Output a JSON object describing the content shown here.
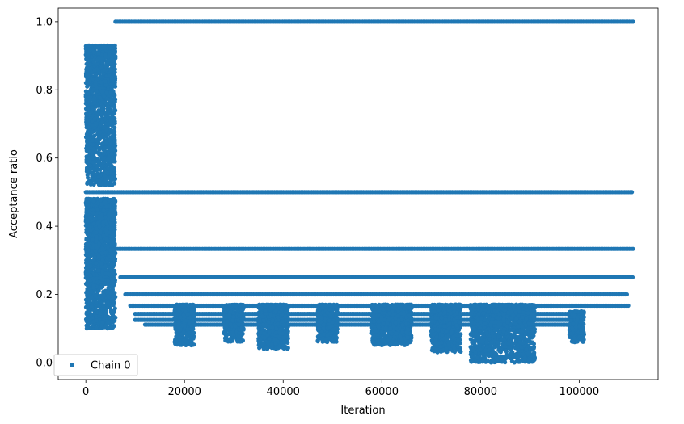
{
  "chart_data": {
    "type": "scatter",
    "xlabel": "Iteration",
    "ylabel": "Acceptance ratio",
    "xlim": [
      -5600,
      116000
    ],
    "ylim": [
      -0.05,
      1.04
    ],
    "xticks": [
      0,
      20000,
      40000,
      60000,
      80000,
      100000
    ],
    "xtick_labels": [
      "0",
      "20000",
      "40000",
      "60000",
      "80000",
      "100000"
    ],
    "yticks": [
      0.0,
      0.2,
      0.4,
      0.6,
      0.8,
      1.0
    ],
    "ytick_labels": [
      "0.0",
      "0.2",
      "0.4",
      "0.6",
      "0.8",
      "1.0"
    ],
    "grid": false,
    "legend_position": "lower-left",
    "marker_color": "#1f77b4",
    "series": [
      {
        "name": "Chain 0",
        "level_bands": [
          {
            "y": 1.0,
            "x_range": [
              6000,
              111000
            ]
          },
          {
            "y": 0.5,
            "x_range": [
              0,
              111000
            ]
          },
          {
            "y": 0.3333,
            "x_range": [
              6000,
              111000
            ]
          },
          {
            "y": 0.25,
            "x_range": [
              7000,
              111000
            ]
          },
          {
            "y": 0.2,
            "x_range": [
              8000,
              110000
            ]
          },
          {
            "y": 0.1667,
            "x_range": [
              9000,
              110000
            ]
          },
          {
            "y": 0.1429,
            "x_range": [
              10000,
              101000
            ]
          },
          {
            "y": 0.125,
            "x_range": [
              10000,
              101000
            ]
          },
          {
            "y": 0.1111,
            "x_range": [
              12000,
              100000
            ]
          }
        ],
        "scatter_clusters": [
          {
            "x_range": [
              0,
              6000
            ],
            "y_range": [
              0.52,
              0.93
            ]
          },
          {
            "x_range": [
              0,
              6000
            ],
            "y_range": [
              0.1,
              0.48
            ]
          },
          {
            "x_range": [
              18000,
              22000
            ],
            "y_range": [
              0.05,
              0.17
            ]
          },
          {
            "x_range": [
              28000,
              32000
            ],
            "y_range": [
              0.06,
              0.17
            ]
          },
          {
            "x_range": [
              35000,
              41000
            ],
            "y_range": [
              0.04,
              0.17
            ]
          },
          {
            "x_range": [
              47000,
              51000
            ],
            "y_range": [
              0.06,
              0.17
            ]
          },
          {
            "x_range": [
              58000,
              66000
            ],
            "y_range": [
              0.05,
              0.17
            ]
          },
          {
            "x_range": [
              70000,
              76000
            ],
            "y_range": [
              0.03,
              0.17
            ]
          },
          {
            "x_range": [
              78000,
              91000
            ],
            "y_range": [
              0.0,
              0.17
            ]
          },
          {
            "x_range": [
              98000,
              101000
            ],
            "y_range": [
              0.06,
              0.15
            ]
          }
        ]
      }
    ]
  }
}
